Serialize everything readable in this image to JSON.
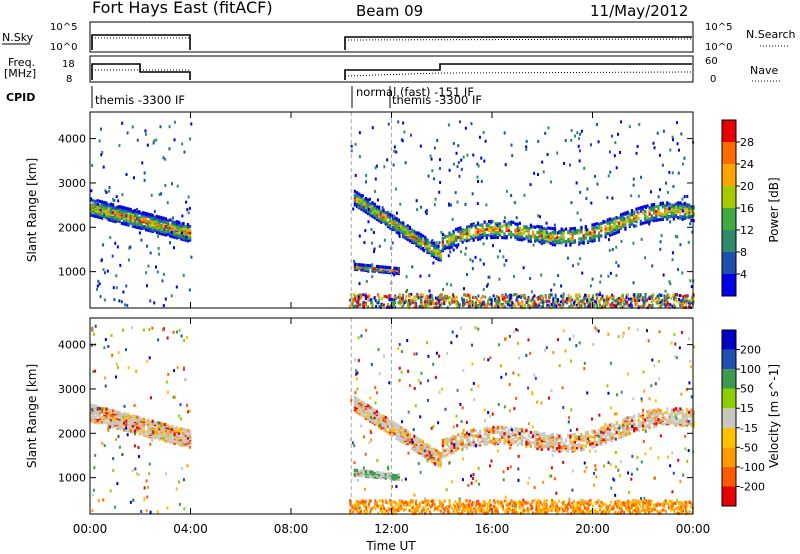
{
  "header": {
    "title": "Fort Hays East (fitACF)",
    "beam": "Beam 09",
    "date": "11/May/2012"
  },
  "top_panels": {
    "nsky_label": "N.Sky",
    "nsky_ticks": [
      "10^5",
      "10^0"
    ],
    "nsearch_label": "N.Search",
    "nsearch_ticks": [
      "10^5",
      "10^0"
    ],
    "freq_label_1": "Freq.",
    "freq_label_2": "[MHz]",
    "freq_ticks": [
      "18",
      "8"
    ],
    "nave_label": "Nave",
    "nave_ticks": [
      "60",
      "0"
    ],
    "cpid_label": "CPID",
    "cpid_entries": [
      "themis -3300 IF",
      "normal (fast) -151 IF",
      "themis -3300 IF"
    ]
  },
  "colors": {
    "power": [
      "#0000e6",
      "#1a4fb0",
      "#2f8a6a",
      "#3faa3f",
      "#a8c800",
      "#ffa500",
      "#ff6a00",
      "#e60000"
    ],
    "velocity": [
      "#e60000",
      "#ff5a00",
      "#ff9a00",
      "#ffc000",
      "#c8c8c0",
      "#8ad000",
      "#3c9a50",
      "#2050b0",
      "#0000c8"
    ],
    "ground_scatter": "#c8c8c0"
  },
  "chart_data": [
    {
      "type": "heatmap",
      "name": "power",
      "xlabel": "",
      "ylabel": "Slant Range [km]",
      "xlim": [
        0,
        24
      ],
      "ylim": [
        180,
        4600
      ],
      "y_ticks": [
        "1000",
        "2000",
        "3000",
        "4000"
      ],
      "colorbar_label": "Power [dB]",
      "colorbar_ticks": [
        "4",
        "8",
        "12",
        "16",
        "20",
        "24",
        "28"
      ],
      "colorbar_range": [
        0,
        32
      ],
      "patches": [
        {
          "t0": 0.0,
          "t1": 4.0,
          "r_start": 2500,
          "r_end": 1900,
          "width": 380,
          "kind": "arc1"
        },
        {
          "t0": 10.5,
          "t1": 14.0,
          "r_start": 2700,
          "r_end": 1400,
          "width": 320,
          "kind": "arc2"
        },
        {
          "t0": 10.5,
          "t1": 12.3,
          "r_start": 1150,
          "r_end": 1050,
          "width": 120,
          "kind": "low"
        },
        {
          "t0": 14.0,
          "t1": 24.0,
          "r_start": 1700,
          "r_end": 2300,
          "width": 380,
          "kind": "evening"
        }
      ],
      "cpid_change_times": [
        10.4,
        12.0
      ]
    },
    {
      "type": "heatmap",
      "name": "velocity",
      "xlabel": "Time UT",
      "ylabel": "Slant Range [km]",
      "xlim": [
        0,
        24
      ],
      "ylim": [
        180,
        4600
      ],
      "x_ticks": [
        "00:00",
        "04:00",
        "08:00",
        "12:00",
        "16:00",
        "20:00",
        "00:00"
      ],
      "y_ticks": [
        "1000",
        "2000",
        "3000",
        "4000"
      ],
      "colorbar_label": "Velocity [m s^-1]",
      "colorbar_ticks": [
        "200",
        "100",
        "50",
        "15",
        "-15",
        "-50",
        "-100",
        "-200"
      ],
      "ground_scatter_color": "gray"
    }
  ]
}
